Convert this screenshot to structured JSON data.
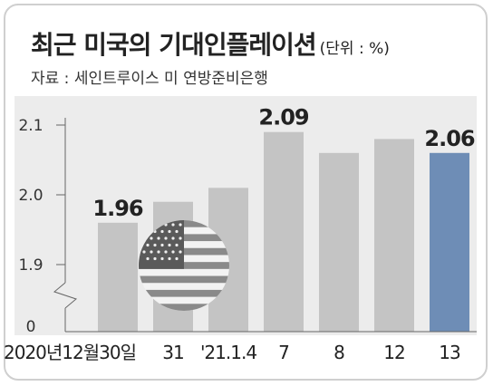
{
  "title": "최근 미국의 기대인플레이션",
  "unit": "(단위 : %)",
  "source": "자료 : 세인트루이스 미 연방준비은행",
  "chart_data": {
    "type": "bar",
    "categories": [
      "2020년12월30일",
      "31",
      "'21.1.4",
      "7",
      "8",
      "12",
      "13"
    ],
    "values": [
      1.96,
      1.99,
      2.01,
      2.09,
      2.06,
      2.08,
      2.06
    ],
    "data_labels": [
      "1.96",
      "",
      "",
      "2.09",
      "",
      "",
      "2.06"
    ],
    "yticks": [
      "2.1",
      "2.0",
      "1.9",
      "0"
    ],
    "ylim": [
      1.83,
      2.1
    ],
    "axis_break": true,
    "colors": {
      "bar": "#c4c4c4",
      "highlight": "#6e8db6",
      "panel": "#ececec"
    },
    "highlight_index": 6,
    "decoration": "us-flag-icon"
  }
}
